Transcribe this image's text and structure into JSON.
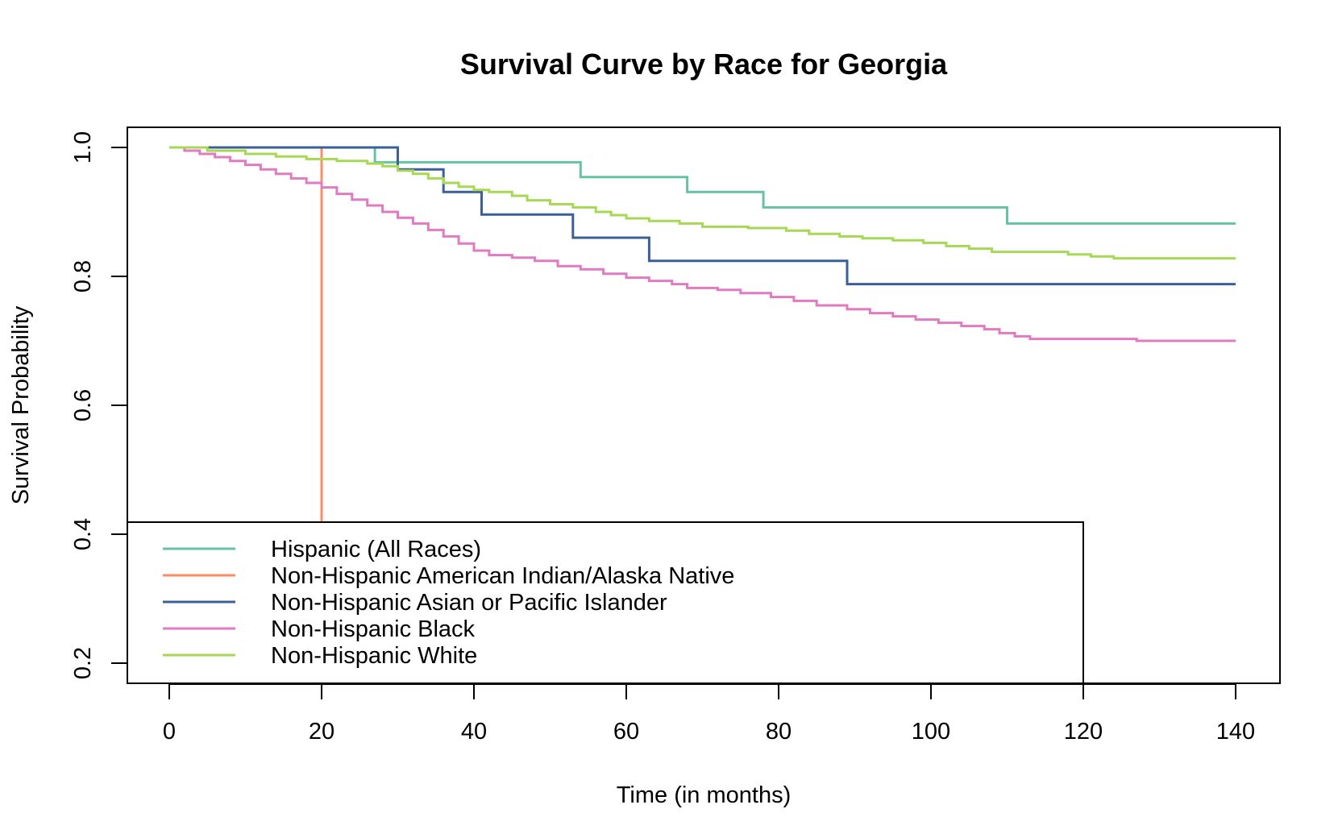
{
  "chart_data": {
    "type": "line",
    "step": true,
    "title": "Survival Curve by Race for Georgia",
    "xlabel": "Time (in months)",
    "ylabel": "Survival Probability",
    "xlim": [
      0,
      140
    ],
    "ylim": [
      0.17,
      1.03
    ],
    "x_ticks": [
      0,
      20,
      40,
      60,
      80,
      100,
      120,
      140
    ],
    "y_ticks": [
      0.2,
      0.4,
      0.6,
      0.8,
      1.0
    ],
    "x_tick_labels": [
      "0",
      "20",
      "40",
      "60",
      "80",
      "100",
      "120",
      "140"
    ],
    "y_tick_labels": [
      "0.2",
      "0.4",
      "0.6",
      "0.8",
      "1.0"
    ],
    "grid": false,
    "legend_position": "bottom-left",
    "series": [
      {
        "name": "Hispanic (All Races)",
        "color": "#66c2a5",
        "points": [
          [
            0,
            1.0
          ],
          [
            27,
            0.977
          ],
          [
            54,
            0.954
          ],
          [
            68,
            0.931
          ],
          [
            78,
            0.907
          ],
          [
            110,
            0.882
          ],
          [
            140,
            0.882
          ]
        ]
      },
      {
        "name": "Non-Hispanic American Indian/Alaska Native",
        "color": "#fc8d62",
        "points": [
          [
            0,
            1.0
          ],
          [
            20,
            1.0
          ],
          [
            20,
            0.0
          ]
        ]
      },
      {
        "name": "Non-Hispanic Asian or Pacific Islander",
        "color": "#3b5f96",
        "points": [
          [
            0,
            1.0
          ],
          [
            30,
            0.966
          ],
          [
            36,
            0.931
          ],
          [
            41,
            0.896
          ],
          [
            53,
            0.86
          ],
          [
            63,
            0.824
          ],
          [
            89,
            0.788
          ],
          [
            140,
            0.788
          ]
        ]
      },
      {
        "name": "Non-Hispanic Black",
        "color": "#e07ac1",
        "points": [
          [
            0,
            1.0
          ],
          [
            2,
            0.995
          ],
          [
            4,
            0.99
          ],
          [
            6,
            0.985
          ],
          [
            8,
            0.979
          ],
          [
            10,
            0.973
          ],
          [
            12,
            0.966
          ],
          [
            14,
            0.959
          ],
          [
            16,
            0.952
          ],
          [
            18,
            0.945
          ],
          [
            20,
            0.938
          ],
          [
            22,
            0.928
          ],
          [
            24,
            0.919
          ],
          [
            26,
            0.91
          ],
          [
            28,
            0.9
          ],
          [
            30,
            0.891
          ],
          [
            32,
            0.882
          ],
          [
            34,
            0.872
          ],
          [
            36,
            0.862
          ],
          [
            38,
            0.851
          ],
          [
            40,
            0.84
          ],
          [
            42,
            0.833
          ],
          [
            45,
            0.829
          ],
          [
            48,
            0.824
          ],
          [
            51,
            0.816
          ],
          [
            54,
            0.811
          ],
          [
            57,
            0.804
          ],
          [
            60,
            0.798
          ],
          [
            63,
            0.793
          ],
          [
            66,
            0.788
          ],
          [
            68,
            0.782
          ],
          [
            72,
            0.779
          ],
          [
            75,
            0.774
          ],
          [
            79,
            0.768
          ],
          [
            82,
            0.762
          ],
          [
            85,
            0.755
          ],
          [
            89,
            0.749
          ],
          [
            92,
            0.743
          ],
          [
            95,
            0.738
          ],
          [
            98,
            0.733
          ],
          [
            101,
            0.728
          ],
          [
            104,
            0.723
          ],
          [
            107,
            0.718
          ],
          [
            109,
            0.712
          ],
          [
            111,
            0.707
          ],
          [
            113,
            0.703
          ],
          [
            127,
            0.7
          ],
          [
            140,
            0.7
          ]
        ]
      },
      {
        "name": "Non-Hispanic White",
        "color": "#a6d854",
        "points": [
          [
            0,
            1.0
          ],
          [
            5,
            0.995
          ],
          [
            10,
            0.99
          ],
          [
            14,
            0.986
          ],
          [
            18,
            0.982
          ],
          [
            22,
            0.979
          ],
          [
            26,
            0.975
          ],
          [
            28,
            0.971
          ],
          [
            30,
            0.964
          ],
          [
            32,
            0.959
          ],
          [
            34,
            0.952
          ],
          [
            36,
            0.945
          ],
          [
            38,
            0.939
          ],
          [
            40,
            0.934
          ],
          [
            42,
            0.931
          ],
          [
            45,
            0.925
          ],
          [
            47,
            0.918
          ],
          [
            50,
            0.912
          ],
          [
            53,
            0.907
          ],
          [
            56,
            0.9
          ],
          [
            58,
            0.895
          ],
          [
            60,
            0.89
          ],
          [
            63,
            0.886
          ],
          [
            67,
            0.882
          ],
          [
            70,
            0.877
          ],
          [
            76,
            0.875
          ],
          [
            81,
            0.871
          ],
          [
            84,
            0.866
          ],
          [
            88,
            0.862
          ],
          [
            91,
            0.859
          ],
          [
            95,
            0.856
          ],
          [
            99,
            0.852
          ],
          [
            102,
            0.847
          ],
          [
            105,
            0.843
          ],
          [
            108,
            0.838
          ],
          [
            118,
            0.834
          ],
          [
            121,
            0.831
          ],
          [
            124,
            0.828
          ],
          [
            140,
            0.828
          ]
        ]
      }
    ]
  }
}
